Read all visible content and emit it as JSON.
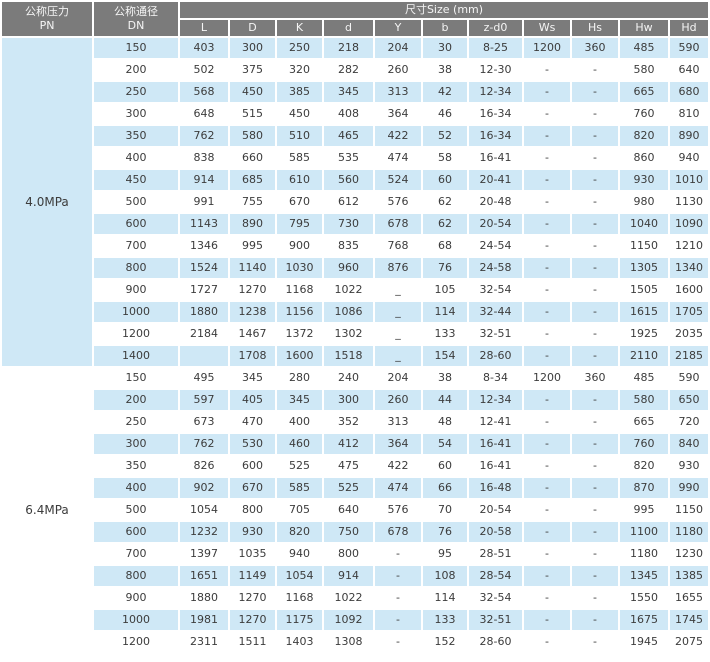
{
  "colors": {
    "header_bg": "#7b7b7b",
    "header_text": "#f5f5f5",
    "row_blue": "#cfe8f6",
    "text": "#3c3c3c",
    "page_bg": "#ffffff"
  },
  "header": {
    "pn_line1": "公称压力",
    "pn_line2": "PN",
    "dn_line1": "公称通径",
    "dn_line2": "DN",
    "size_title": "尺寸Size (mm)",
    "size_columns": [
      "L",
      "D",
      "K",
      "d",
      "Y",
      "b",
      "z-d0",
      "Ws",
      "Hs",
      "Hw",
      "Hd"
    ]
  },
  "sections": [
    {
      "pn": "4.0MPa",
      "pn_bg": "#cfe8f6",
      "rows": [
        {
          "dn": "150",
          "values": [
            "403",
            "300",
            "250",
            "218",
            "204",
            "30",
            "8-25",
            "1200",
            "360",
            "485",
            "590"
          ]
        },
        {
          "dn": "200",
          "values": [
            "502",
            "375",
            "320",
            "282",
            "260",
            "38",
            "12-30",
            "-",
            "-",
            "580",
            "640"
          ]
        },
        {
          "dn": "250",
          "values": [
            "568",
            "450",
            "385",
            "345",
            "313",
            "42",
            "12-34",
            "-",
            "-",
            "665",
            "680"
          ]
        },
        {
          "dn": "300",
          "values": [
            "648",
            "515",
            "450",
            "408",
            "364",
            "46",
            "16-34",
            "-",
            "-",
            "760",
            "810"
          ]
        },
        {
          "dn": "350",
          "values": [
            "762",
            "580",
            "510",
            "465",
            "422",
            "52",
            "16-34",
            "-",
            "-",
            "820",
            "890"
          ]
        },
        {
          "dn": "400",
          "values": [
            "838",
            "660",
            "585",
            "535",
            "474",
            "58",
            "16-41",
            "-",
            "-",
            "860",
            "940"
          ]
        },
        {
          "dn": "450",
          "values": [
            "914",
            "685",
            "610",
            "560",
            "524",
            "60",
            "20-41",
            "-",
            "-",
            "930",
            "1010"
          ]
        },
        {
          "dn": "500",
          "values": [
            "991",
            "755",
            "670",
            "612",
            "576",
            "62",
            "20-48",
            "-",
            "-",
            "980",
            "1130"
          ]
        },
        {
          "dn": "600",
          "values": [
            "1143",
            "890",
            "795",
            "730",
            "678",
            "62",
            "20-54",
            "-",
            "-",
            "1040",
            "1090"
          ]
        },
        {
          "dn": "700",
          "values": [
            "1346",
            "995",
            "900",
            "835",
            "768",
            "68",
            "24-54",
            "-",
            "-",
            "1150",
            "1210"
          ]
        },
        {
          "dn": "800",
          "values": [
            "1524",
            "1140",
            "1030",
            "960",
            "876",
            "76",
            "24-58",
            "-",
            "-",
            "1305",
            "1340"
          ]
        },
        {
          "dn": "900",
          "values": [
            "1727",
            "1270",
            "1168",
            "1022",
            "_",
            "105",
            "32-54",
            "-",
            "-",
            "1505",
            "1600"
          ]
        },
        {
          "dn": "1000",
          "values": [
            "1880",
            "1238",
            "1156",
            "1086",
            "_",
            "114",
            "32-44",
            "-",
            "-",
            "1615",
            "1705"
          ]
        },
        {
          "dn": "1200",
          "values": [
            "2184",
            "1467",
            "1372",
            "1302",
            "_",
            "133",
            "32-51",
            "-",
            "-",
            "1925",
            "2035"
          ]
        },
        {
          "dn": "1400",
          "values": [
            "",
            "1708",
            "1600",
            "1518",
            "_",
            "154",
            "28-60",
            "-",
            "-",
            "2110",
            "2185"
          ]
        }
      ]
    },
    {
      "pn": "6.4MPa",
      "pn_bg": "#ffffff",
      "rows": [
        {
          "dn": "150",
          "values": [
            "495",
            "345",
            "280",
            "240",
            "204",
            "38",
            "8-34",
            "1200",
            "360",
            "485",
            "590"
          ]
        },
        {
          "dn": "200",
          "values": [
            "597",
            "405",
            "345",
            "300",
            "260",
            "44",
            "12-34",
            "-",
            "-",
            "580",
            "650"
          ]
        },
        {
          "dn": "250",
          "values": [
            "673",
            "470",
            "400",
            "352",
            "313",
            "48",
            "12-41",
            "-",
            "-",
            "665",
            "720"
          ]
        },
        {
          "dn": "300",
          "values": [
            "762",
            "530",
            "460",
            "412",
            "364",
            "54",
            "16-41",
            "-",
            "-",
            "760",
            "840"
          ]
        },
        {
          "dn": "350",
          "values": [
            "826",
            "600",
            "525",
            "475",
            "422",
            "60",
            "16-41",
            "-",
            "-",
            "820",
            "930"
          ]
        },
        {
          "dn": "400",
          "values": [
            "902",
            "670",
            "585",
            "525",
            "474",
            "66",
            "16-48",
            "-",
            "-",
            "870",
            "990"
          ]
        },
        {
          "dn": "500",
          "values": [
            "1054",
            "800",
            "705",
            "640",
            "576",
            "70",
            "20-54",
            "-",
            "-",
            "995",
            "1150"
          ]
        },
        {
          "dn": "600",
          "values": [
            "1232",
            "930",
            "820",
            "750",
            "678",
            "76",
            "20-58",
            "-",
            "-",
            "1100",
            "1180"
          ]
        },
        {
          "dn": "700",
          "values": [
            "1397",
            "1035",
            "940",
            "800",
            "-",
            "95",
            "28-51",
            "-",
            "-",
            "1180",
            "1230"
          ]
        },
        {
          "dn": "800",
          "values": [
            "1651",
            "1149",
            "1054",
            "914",
            "-",
            "108",
            "28-54",
            "-",
            "-",
            "1345",
            "1385"
          ]
        },
        {
          "dn": "900",
          "values": [
            "1880",
            "1270",
            "1168",
            "1022",
            "-",
            "114",
            "32-54",
            "-",
            "-",
            "1550",
            "1655"
          ]
        },
        {
          "dn": "1000",
          "values": [
            "1981",
            "1270",
            "1175",
            "1092",
            "-",
            "133",
            "32-51",
            "-",
            "-",
            "1675",
            "1745"
          ]
        },
        {
          "dn": "1200",
          "values": [
            "2311",
            "1511",
            "1403",
            "1308",
            "-",
            "152",
            "28-60",
            "-",
            "-",
            "1945",
            "2075"
          ]
        }
      ]
    }
  ]
}
